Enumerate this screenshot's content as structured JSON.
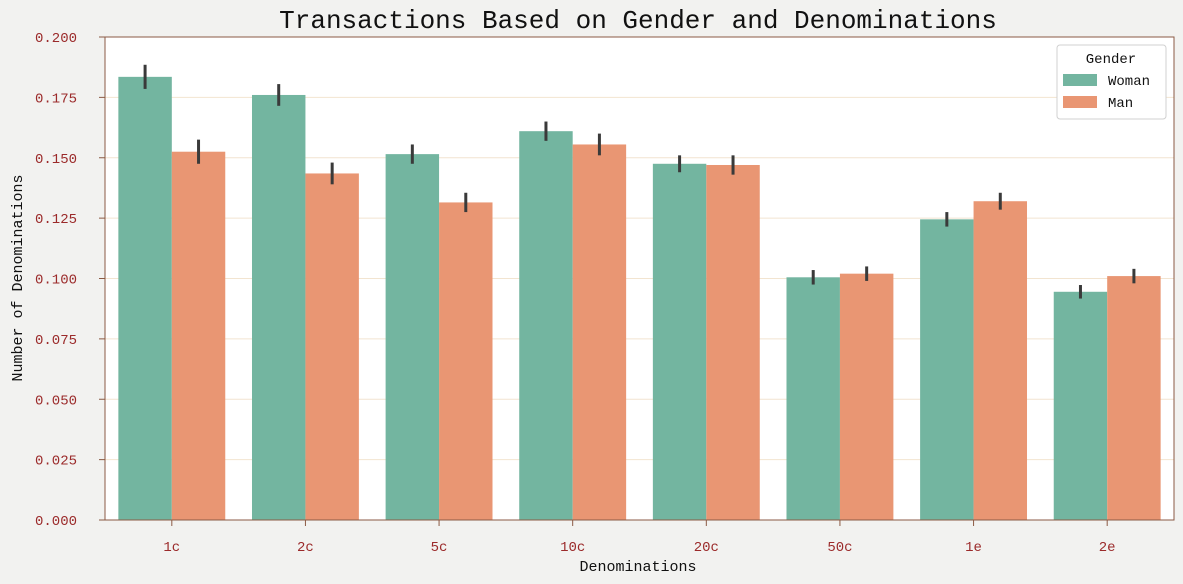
{
  "chart_data": {
    "type": "bar",
    "title": "Transactions Based on Gender and Denominations",
    "xlabel": "Denominations",
    "ylabel": "Number of Denominations",
    "categories": [
      "1c",
      "2c",
      "5c",
      "10c",
      "20c",
      "50c",
      "1e",
      "2e"
    ],
    "ylim": [
      0,
      0.2
    ],
    "yticks": [
      "0.000",
      "0.025",
      "0.050",
      "0.075",
      "0.100",
      "0.125",
      "0.150",
      "0.175",
      "0.200"
    ],
    "grid": true,
    "legend": {
      "title": "Gender",
      "position": "top-right"
    },
    "series": [
      {
        "name": "Woman",
        "color": "#73b5a0",
        "values": [
          0.1835,
          0.176,
          0.1515,
          0.161,
          0.1475,
          0.1005,
          0.1245,
          0.0945
        ],
        "errors": [
          0.005,
          0.0045,
          0.004,
          0.004,
          0.0035,
          0.003,
          0.003,
          0.0028
        ]
      },
      {
        "name": "Man",
        "color": "#e99673",
        "values": [
          0.1525,
          0.1435,
          0.1315,
          0.1555,
          0.147,
          0.102,
          0.132,
          0.101
        ],
        "errors": [
          0.005,
          0.0045,
          0.004,
          0.0045,
          0.004,
          0.003,
          0.0035,
          0.003
        ]
      }
    ]
  }
}
